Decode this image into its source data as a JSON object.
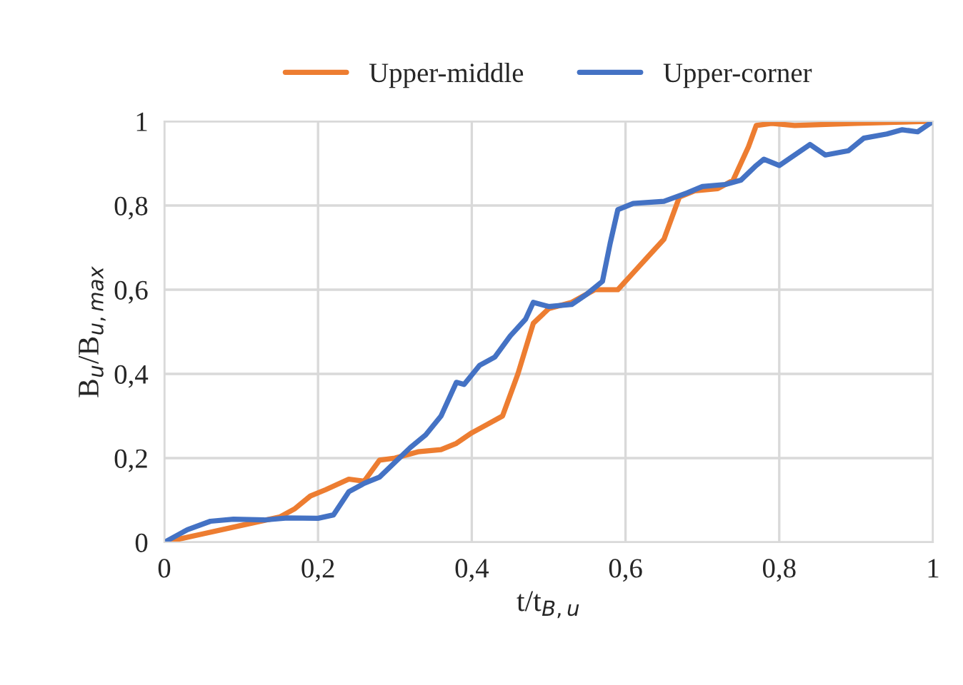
{
  "chart_data": {
    "type": "line",
    "xlabel": "t/t$_{B,u}$",
    "ylabel": "B$_{u}$/B$_{u,max}$",
    "xlim": [
      0,
      1
    ],
    "ylim": [
      0,
      1
    ],
    "xticks": [
      0,
      {
        "value": 0.2,
        "label": "0,2"
      },
      {
        "value": 0.4,
        "label": "0,4"
      },
      {
        "value": 0.6,
        "label": "0,6"
      },
      {
        "value": 0.8,
        "label": "0,8"
      },
      1
    ],
    "yticks": [
      0,
      {
        "value": 0.2,
        "label": "0,2"
      },
      {
        "value": 0.4,
        "label": "0,4"
      },
      {
        "value": 0.6,
        "label": "0,6"
      },
      {
        "value": 0.8,
        "label": "0,8"
      },
      1
    ],
    "grid": true,
    "legend": "top",
    "marker": "none",
    "line_style": "solid",
    "series": [
      {
        "name": "Upper-middle",
        "color": "#ed7d31",
        "x": [
          0,
          0.05,
          0.1,
          0.15,
          0.17,
          0.19,
          0.21,
          0.24,
          0.26,
          0.28,
          0.3,
          0.33,
          0.36,
          0.38,
          0.4,
          0.42,
          0.44,
          0.46,
          0.48,
          0.5,
          0.53,
          0.56,
          0.59,
          0.61,
          0.63,
          0.65,
          0.67,
          0.69,
          0.72,
          0.74,
          0.76,
          0.77,
          0.79,
          0.82,
          0.9,
          1
        ],
        "values": [
          0,
          0.02,
          0.04,
          0.06,
          0.08,
          0.11,
          0.125,
          0.15,
          0.145,
          0.195,
          0.2,
          0.215,
          0.22,
          0.235,
          0.26,
          0.28,
          0.3,
          0.4,
          0.52,
          0.555,
          0.57,
          0.6,
          0.6,
          0.64,
          0.68,
          0.72,
          0.82,
          0.835,
          0.84,
          0.86,
          0.94,
          0.99,
          0.995,
          0.99,
          0.995,
          1
        ]
      },
      {
        "name": "Upper-corner",
        "color": "#4472c4",
        "x": [
          0,
          0.03,
          0.06,
          0.09,
          0.13,
          0.16,
          0.2,
          0.22,
          0.24,
          0.26,
          0.28,
          0.3,
          0.32,
          0.34,
          0.36,
          0.38,
          0.39,
          0.41,
          0.43,
          0.45,
          0.47,
          0.48,
          0.5,
          0.53,
          0.55,
          0.57,
          0.58,
          0.59,
          0.61,
          0.65,
          0.68,
          0.7,
          0.73,
          0.75,
          0.77,
          0.78,
          0.8,
          0.84,
          0.86,
          0.89,
          0.91,
          0.94,
          0.96,
          0.98,
          1
        ],
        "values": [
          0,
          0.03,
          0.05,
          0.055,
          0.053,
          0.058,
          0.057,
          0.065,
          0.12,
          0.14,
          0.155,
          0.19,
          0.225,
          0.255,
          0.3,
          0.38,
          0.375,
          0.42,
          0.44,
          0.49,
          0.53,
          0.57,
          0.56,
          0.565,
          0.59,
          0.62,
          0.71,
          0.79,
          0.805,
          0.81,
          0.83,
          0.845,
          0.85,
          0.86,
          0.895,
          0.91,
          0.895,
          0.945,
          0.92,
          0.93,
          0.96,
          0.97,
          0.98,
          0.975,
          1
        ]
      }
    ]
  }
}
